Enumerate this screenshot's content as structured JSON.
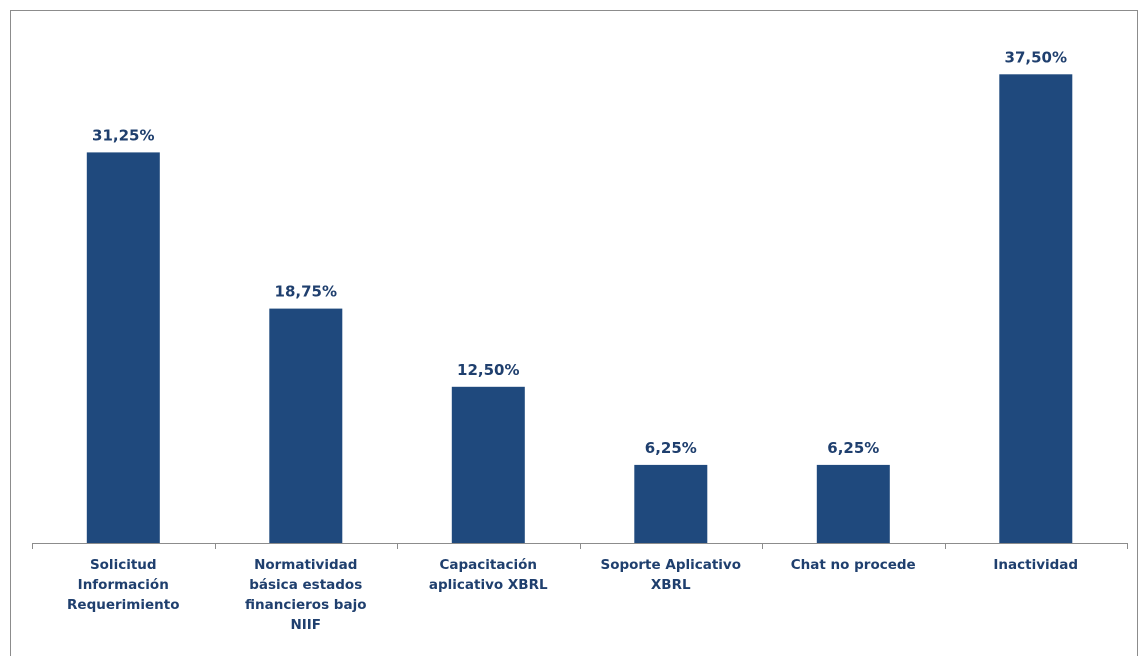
{
  "chart_data": {
    "type": "bar",
    "categories": [
      "Solicitud Información Requerimiento",
      "Normatividad básica estados financieros bajo NIIF",
      "Capacitación aplicativo XBRL",
      "Soporte Aplicativo XBRL",
      "Chat no procede",
      "Inactividad"
    ],
    "category_lines": [
      [
        "Solicitud",
        "Información",
        "Requerimiento"
      ],
      [
        "Normatividad",
        "básica estados",
        "financieros bajo",
        "NIIF"
      ],
      [
        "Capacitación",
        "aplicativo XBRL"
      ],
      [
        "Soporte Aplicativo",
        "XBRL"
      ],
      [
        "Chat no procede"
      ],
      [
        "Inactividad"
      ]
    ],
    "values": [
      31.25,
      18.75,
      12.5,
      6.25,
      6.25,
      37.5
    ],
    "data_labels": [
      "31,25%",
      "18,75%",
      "12,50%",
      "6,25%",
      "6,25%",
      "37,50%"
    ],
    "title": "",
    "xlabel": "",
    "ylabel": "",
    "ylim": [
      0,
      40
    ],
    "grid": false,
    "legend": "none",
    "bar_color": "#1f497d",
    "label_color": "#1f3f6e",
    "axis_color": "#8c8c8c"
  }
}
